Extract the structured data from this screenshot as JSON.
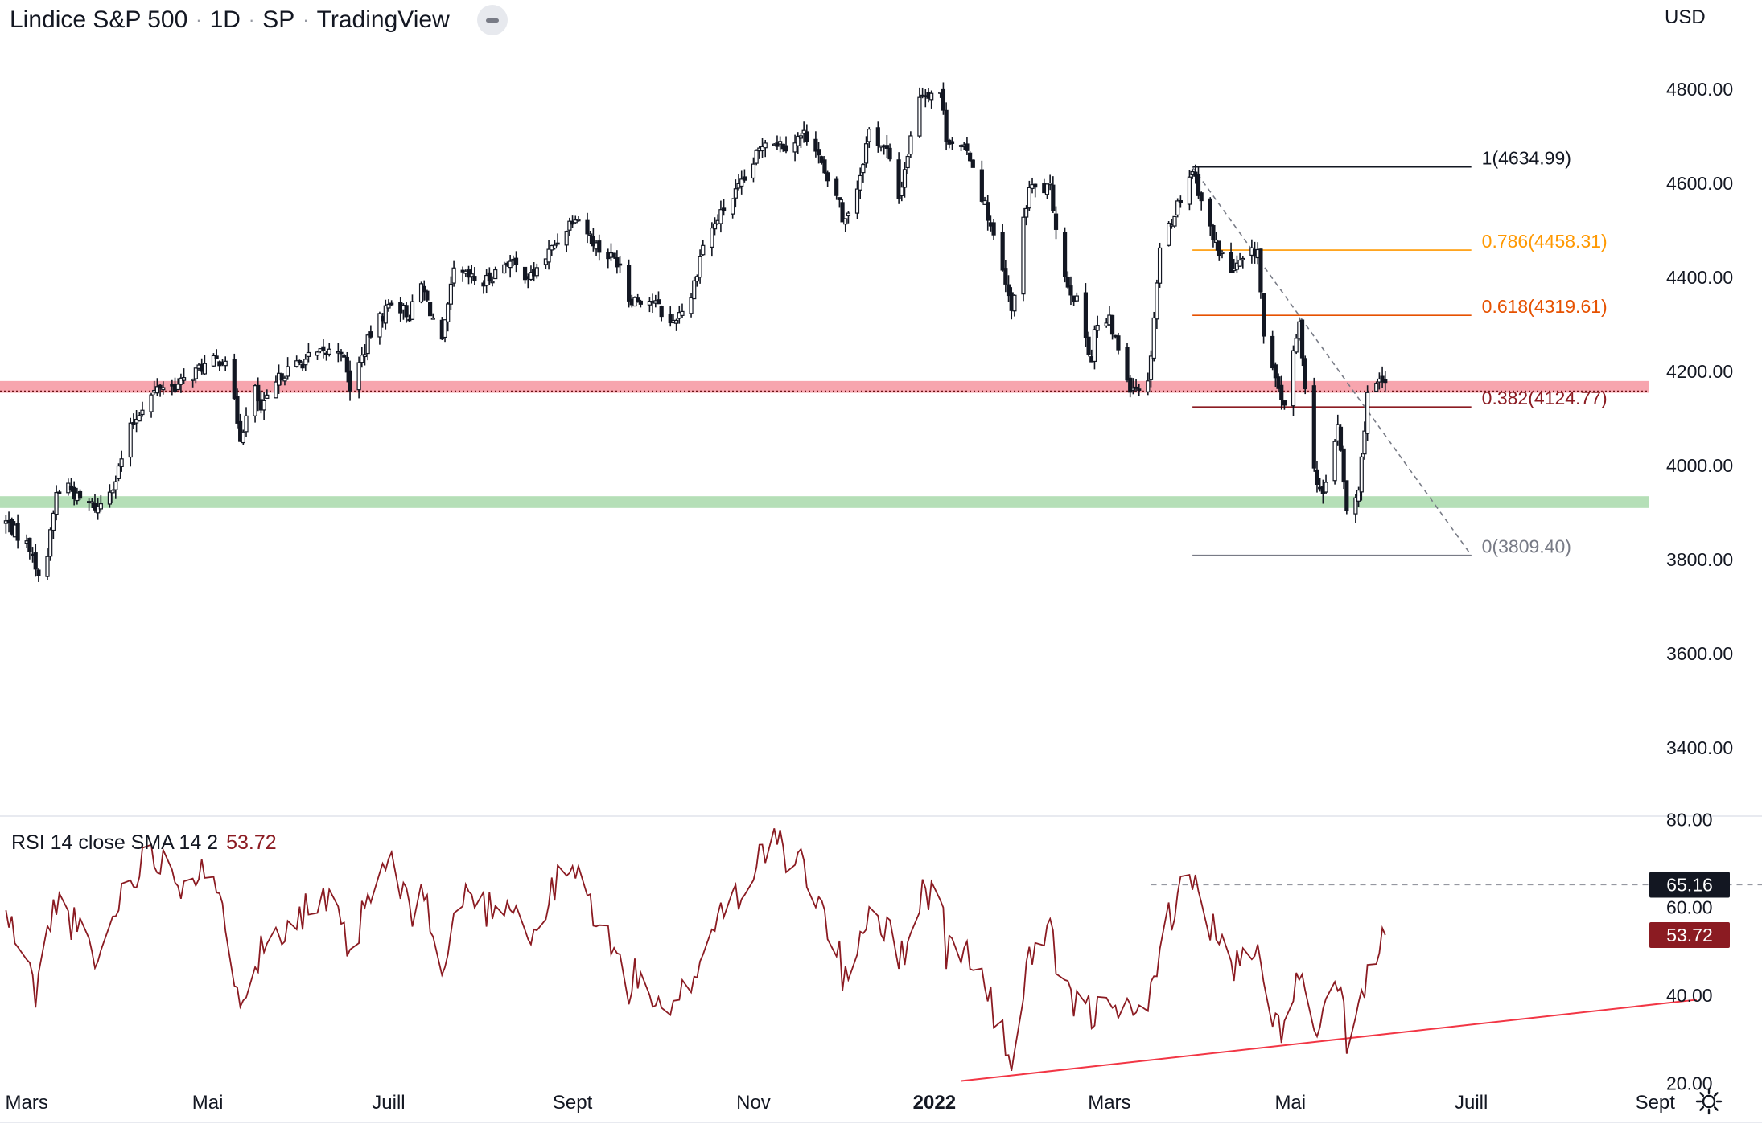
{
  "header": {
    "symbol": "Lindice S&P 500",
    "interval": "1D",
    "exchange": "SP",
    "provider": "TradingView",
    "separator": "·",
    "currency": "USD"
  },
  "rsi_legend": {
    "label": "RSI 14 close SMA 14 2",
    "value": "53.72"
  },
  "colors": {
    "candle": "#131722",
    "resistance_band": "#f7a5ae",
    "support_band": "#b5dfb7",
    "rsi_line": "#8b1b22",
    "rsi_trendline": "#f23645",
    "fib_1": "#131722",
    "fib_0786": "#ff9800",
    "fib_0618": "#e65100",
    "fib_0382": "#8b1b22",
    "fib_0": "#787b86",
    "grid_text": "#131722"
  },
  "icons": {
    "settings": "gear-icon",
    "collapse": "minus-pill-icon"
  },
  "chart_data": [
    {
      "type": "candlestick",
      "name": "price",
      "x_axis": {
        "labels": [
          {
            "date": "2021-03-01",
            "text": "Mars"
          },
          {
            "date": "2021-05-01",
            "text": "Mai"
          },
          {
            "date": "2021-07-01",
            "text": "Juill"
          },
          {
            "date": "2021-09-01",
            "text": "Sept"
          },
          {
            "date": "2021-11-01",
            "text": "Nov"
          },
          {
            "date": "2022-01-01",
            "text": "2022",
            "bold": true
          },
          {
            "date": "2022-03-01",
            "text": "Mars"
          },
          {
            "date": "2022-05-01",
            "text": "Mai"
          },
          {
            "date": "2022-07-01",
            "text": "Juill"
          },
          {
            "date": "2022-09-01",
            "text": "Sept"
          }
        ],
        "range": [
          "2021-02-20",
          "2022-10-07"
        ]
      },
      "y_axis": {
        "ticks": [
          3400,
          3600,
          3800,
          4000,
          4200,
          4400,
          4600,
          4800
        ],
        "tick_labels": [
          "3400.00",
          "3600.00",
          "3800.00",
          "4000.00",
          "4200.00",
          "4400.00",
          "4600.00",
          "4800.00"
        ],
        "range": [
          3255,
          4990
        ]
      },
      "close_path": [
        [
          "2021-02-19",
          3900
        ],
        [
          "2021-03-03",
          3820
        ],
        [
          "2021-03-04",
          3770
        ],
        [
          "2021-03-08",
          3810
        ],
        [
          "2021-03-11",
          3940
        ],
        [
          "2021-03-15",
          3960
        ],
        [
          "2021-03-18",
          3930
        ],
        [
          "2021-03-25",
          3910
        ],
        [
          "2021-03-31",
          3972
        ],
        [
          "2021-04-05",
          4078
        ],
        [
          "2021-04-09",
          4128
        ],
        [
          "2021-04-15",
          4170
        ],
        [
          "2021-04-21",
          4170
        ],
        [
          "2021-04-29",
          4210
        ],
        [
          "2021-05-07",
          4230
        ],
        [
          "2021-05-12",
          4063
        ],
        [
          "2021-05-17",
          4160
        ],
        [
          "2021-05-19",
          4115
        ],
        [
          "2021-05-26",
          4195
        ],
        [
          "2021-06-04",
          4229
        ],
        [
          "2021-06-15",
          4250
        ],
        [
          "2021-06-18",
          4166
        ],
        [
          "2021-06-25",
          4280
        ],
        [
          "2021-07-02",
          4352
        ],
        [
          "2021-07-08",
          4320
        ],
        [
          "2021-07-12",
          4384
        ],
        [
          "2021-07-19",
          4258
        ],
        [
          "2021-07-23",
          4411
        ],
        [
          "2021-08-02",
          4387
        ],
        [
          "2021-08-10",
          4436
        ],
        [
          "2021-08-18",
          4400
        ],
        [
          "2021-08-26",
          4470
        ],
        [
          "2021-09-02",
          4536
        ],
        [
          "2021-09-10",
          4459
        ],
        [
          "2021-09-17",
          4432
        ],
        [
          "2021-09-20",
          4357
        ],
        [
          "2021-09-28",
          4352
        ],
        [
          "2021-10-04",
          4300
        ],
        [
          "2021-10-11",
          4361
        ],
        [
          "2021-10-15",
          4471
        ],
        [
          "2021-10-22",
          4545
        ],
        [
          "2021-10-29",
          4605
        ],
        [
          "2021-11-05",
          4697
        ],
        [
          "2021-11-12",
          4682
        ],
        [
          "2021-11-18",
          4704
        ],
        [
          "2021-11-22",
          4682
        ],
        [
          "2021-11-26",
          4595
        ],
        [
          "2021-11-30",
          4567
        ],
        [
          "2021-12-01",
          4513
        ],
        [
          "2021-12-06",
          4592
        ],
        [
          "2021-12-10",
          4712
        ],
        [
          "2021-12-16",
          4668
        ],
        [
          "2021-12-20",
          4568
        ],
        [
          "2021-12-27",
          4791
        ],
        [
          "2022-01-03",
          4796
        ],
        [
          "2022-01-05",
          4700
        ],
        [
          "2022-01-13",
          4659
        ],
        [
          "2022-01-19",
          4532
        ],
        [
          "2022-01-24",
          4410
        ],
        [
          "2022-01-27",
          4326
        ],
        [
          "2022-01-31",
          4515
        ],
        [
          "2022-02-02",
          4589
        ],
        [
          "2022-02-09",
          4587
        ],
        [
          "2022-02-14",
          4401
        ],
        [
          "2022-02-18",
          4348
        ],
        [
          "2022-02-23",
          4225
        ],
        [
          "2022-02-24",
          4288
        ],
        [
          "2022-03-01",
          4306
        ],
        [
          "2022-03-08",
          4170
        ],
        [
          "2022-03-14",
          4173
        ],
        [
          "2022-03-18",
          4463
        ],
        [
          "2022-03-29",
          4631
        ],
        [
          "2022-04-05",
          4481
        ],
        [
          "2022-04-11",
          4413
        ],
        [
          "2022-04-20",
          4460
        ],
        [
          "2022-04-22",
          4272
        ],
        [
          "2022-04-26",
          4175
        ],
        [
          "2022-04-29",
          4132
        ],
        [
          "2022-05-04",
          4300
        ],
        [
          "2022-05-09",
          3991
        ],
        [
          "2022-05-12",
          3930
        ],
        [
          "2022-05-17",
          4088
        ],
        [
          "2022-05-20",
          3901
        ],
        [
          "2022-05-24",
          3941
        ],
        [
          "2022-05-27",
          4158
        ],
        [
          "2022-06-02",
          4177
        ]
      ],
      "candles": {
        "count": 325,
        "first_date": "2021-02-22",
        "last_date": "2022-06-02",
        "last_close": 4177
      },
      "zones": [
        {
          "kind": "resistance",
          "from": 4155,
          "to": 4180,
          "color": "#f7a5ae"
        },
        {
          "kind": "support",
          "from": 3910,
          "to": 3935,
          "color": "#b5dfb7"
        }
      ],
      "horizontal_line": {
        "value": 4158,
        "style": "dotted",
        "color": "#6e1115"
      },
      "fibonacci": {
        "start_date": "2022-03-29",
        "end_date": "2022-07-01",
        "levels": [
          {
            "ratio": "1",
            "value": 4634.99,
            "label": "1(4634.99)",
            "color": "#131722"
          },
          {
            "ratio": "0.786",
            "value": 4458.31,
            "label": "0.786(4458.31)",
            "color": "#ff9800"
          },
          {
            "ratio": "0.618",
            "value": 4319.61,
            "label": "0.618(4319.61)",
            "color": "#e65100"
          },
          {
            "ratio": "0.382",
            "value": 4124.77,
            "label": "0.382(4124.77)",
            "color": "#8b1b22"
          },
          {
            "ratio": "0",
            "value": 3809.4,
            "label": "0(3809.40)",
            "color": "#787b86"
          }
        ],
        "trend_line": {
          "from": [
            "2022-03-29",
            4634.99
          ],
          "to": [
            "2022-07-01",
            3809.4
          ],
          "style": "dashed"
        }
      }
    },
    {
      "type": "line",
      "name": "RSI 14",
      "y_axis": {
        "ticks": [
          20,
          40,
          60,
          80
        ],
        "tick_labels": [
          "20.00",
          "40.00",
          "60.00",
          "80.00"
        ],
        "range": [
          19.5,
          80.8
        ]
      },
      "series": [
        {
          "label": "RSI",
          "color": "#8b1b22",
          "values_path": [
            [
              "2021-02-22",
              58
            ],
            [
              "2021-02-26",
              52
            ],
            [
              "2021-03-04",
              41
            ],
            [
              "2021-03-11",
              62
            ],
            [
              "2021-03-18",
              55
            ],
            [
              "2021-03-25",
              47
            ],
            [
              "2021-04-01",
              62
            ],
            [
              "2021-04-08",
              70
            ],
            [
              "2021-04-15",
              72
            ],
            [
              "2021-04-22",
              66
            ],
            [
              "2021-04-29",
              70
            ],
            [
              "2021-05-05",
              60
            ],
            [
              "2021-05-12",
              41
            ],
            [
              "2021-05-19",
              50
            ],
            [
              "2021-05-26",
              56
            ],
            [
              "2021-06-04",
              60
            ],
            [
              "2021-06-11",
              61
            ],
            [
              "2021-06-18",
              49
            ],
            [
              "2021-06-25",
              63
            ],
            [
              "2021-07-02",
              71
            ],
            [
              "2021-07-08",
              58
            ],
            [
              "2021-07-12",
              66
            ],
            [
              "2021-07-19",
              44
            ],
            [
              "2021-07-26",
              64
            ],
            [
              "2021-08-03",
              60
            ],
            [
              "2021-08-12",
              62
            ],
            [
              "2021-08-18",
              52
            ],
            [
              "2021-08-27",
              66
            ],
            [
              "2021-09-02",
              68
            ],
            [
              "2021-09-10",
              57
            ],
            [
              "2021-09-20",
              42
            ],
            [
              "2021-09-24",
              46
            ],
            [
              "2021-09-30",
              36
            ],
            [
              "2021-10-04",
              34
            ],
            [
              "2021-10-08",
              40
            ],
            [
              "2021-10-14",
              48
            ],
            [
              "2021-10-21",
              60
            ],
            [
              "2021-10-28",
              64
            ],
            [
              "2021-11-05",
              74
            ],
            [
              "2021-11-08",
              78
            ],
            [
              "2021-11-12",
              69
            ],
            [
              "2021-11-18",
              70
            ],
            [
              "2021-11-26",
              56
            ],
            [
              "2021-11-30",
              48
            ],
            [
              "2021-12-01",
              43
            ],
            [
              "2021-12-06",
              52
            ],
            [
              "2021-12-10",
              60
            ],
            [
              "2021-12-16",
              55
            ],
            [
              "2021-12-20",
              47
            ],
            [
              "2021-12-28",
              64
            ],
            [
              "2022-01-03",
              63
            ],
            [
              "2022-01-05",
              50
            ],
            [
              "2022-01-13",
              50
            ],
            [
              "2022-01-19",
              40
            ],
            [
              "2022-01-24",
              30
            ],
            [
              "2022-01-27",
              26
            ],
            [
              "2022-01-31",
              38
            ],
            [
              "2022-02-02",
              50
            ],
            [
              "2022-02-09",
              53
            ],
            [
              "2022-02-14",
              40
            ],
            [
              "2022-02-18",
              38
            ],
            [
              "2022-02-24",
              35
            ],
            [
              "2022-03-01",
              42
            ],
            [
              "2022-03-08",
              34
            ],
            [
              "2022-03-14",
              36
            ],
            [
              "2022-03-18",
              53
            ],
            [
              "2022-03-24",
              62
            ],
            [
              "2022-03-29",
              67
            ],
            [
              "2022-04-05",
              55
            ],
            [
              "2022-04-11",
              46
            ],
            [
              "2022-04-20",
              49
            ],
            [
              "2022-04-22",
              40
            ],
            [
              "2022-04-29",
              32
            ],
            [
              "2022-05-04",
              44
            ],
            [
              "2022-05-09",
              32
            ],
            [
              "2022-05-12",
              33
            ],
            [
              "2022-05-17",
              43
            ],
            [
              "2022-05-20",
              31
            ],
            [
              "2022-05-24",
              37
            ],
            [
              "2022-05-27",
              43
            ],
            [
              "2022-06-02",
              53.72
            ]
          ]
        }
      ],
      "reference_line": {
        "value": 65.16,
        "label": "65.16",
        "style": "dashed",
        "from_date": "2022-03-15"
      },
      "last_value_label": "53.72",
      "trendline": {
        "from": [
          "2022-01-10",
          20.5
        ],
        "to": [
          "2022-09-15",
          39
        ],
        "color": "#f23645"
      }
    }
  ]
}
